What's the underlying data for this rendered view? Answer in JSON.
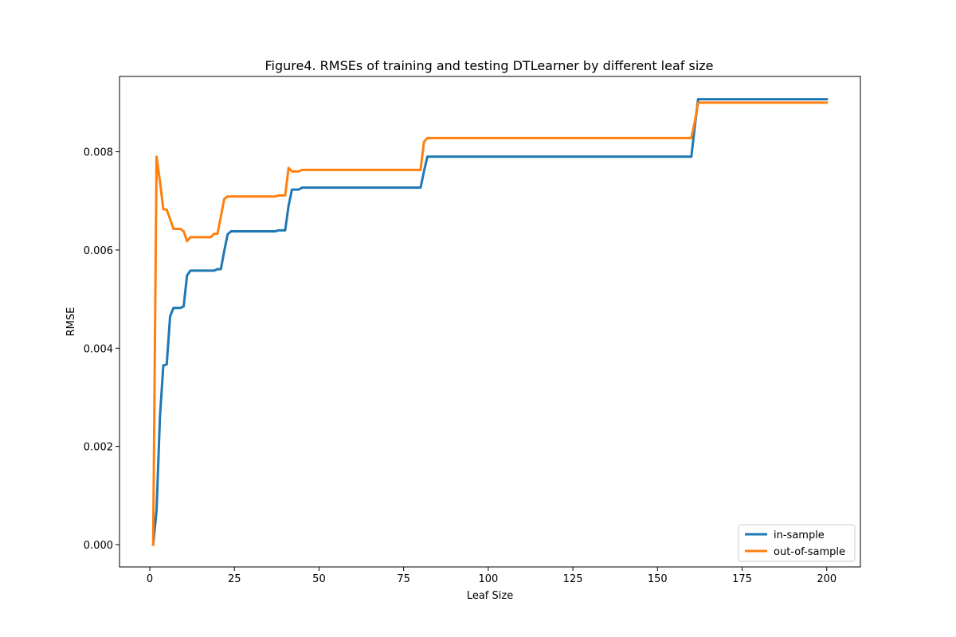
{
  "chart_data": {
    "type": "line",
    "title": "Figure4. RMSEs of training and testing DTLearner by different leaf size",
    "xlabel": "Leaf Size",
    "ylabel": "RMSE",
    "xlim": [
      -8.95,
      209.95
    ],
    "ylim": [
      -0.000454,
      0.009534
    ],
    "xticks": [
      0,
      25,
      50,
      75,
      100,
      125,
      150,
      175,
      200
    ],
    "xtick_labels": [
      "0",
      "25",
      "50",
      "75",
      "100",
      "125",
      "150",
      "175",
      "200"
    ],
    "yticks": [
      0.0,
      0.002,
      0.004,
      0.006,
      0.008
    ],
    "ytick_labels": [
      "0.000",
      "0.002",
      "0.004",
      "0.006",
      "0.008"
    ],
    "grid": false,
    "legend_position": "lower-right",
    "series": [
      {
        "name": "in-sample",
        "color": "#1f77b4",
        "points": [
          [
            1,
            0.0
          ],
          [
            2,
            0.0007
          ],
          [
            3,
            0.0026
          ],
          [
            4,
            0.00365
          ],
          [
            5,
            0.00367
          ],
          [
            6,
            0.00465
          ],
          [
            7,
            0.00482
          ],
          [
            9,
            0.00482
          ],
          [
            10,
            0.00485
          ],
          [
            11,
            0.00548
          ],
          [
            12,
            0.00558
          ],
          [
            19,
            0.00558
          ],
          [
            20,
            0.00561
          ],
          [
            21,
            0.00561
          ],
          [
            22,
            0.00598
          ],
          [
            23,
            0.00632
          ],
          [
            24,
            0.00638
          ],
          [
            37,
            0.00638
          ],
          [
            38,
            0.0064
          ],
          [
            40,
            0.0064
          ],
          [
            41,
            0.0069
          ],
          [
            42,
            0.00723
          ],
          [
            44,
            0.00723
          ],
          [
            45,
            0.00727
          ],
          [
            80,
            0.00727
          ],
          [
            81,
            0.0076
          ],
          [
            82,
            0.0079
          ],
          [
            160,
            0.0079
          ],
          [
            161,
            0.0085
          ],
          [
            162,
            0.00907
          ],
          [
            200,
            0.00907
          ]
        ]
      },
      {
        "name": "out-of-sample",
        "color": "#ff7f0e",
        "points": [
          [
            1,
            0.0
          ],
          [
            2,
            0.0079
          ],
          [
            3,
            0.0074
          ],
          [
            4,
            0.00683
          ],
          [
            5,
            0.00682
          ],
          [
            6,
            0.00663
          ],
          [
            7,
            0.00643
          ],
          [
            9,
            0.00643
          ],
          [
            10,
            0.00638
          ],
          [
            11,
            0.00618
          ],
          [
            12,
            0.00626
          ],
          [
            18,
            0.00626
          ],
          [
            19,
            0.00633
          ],
          [
            20,
            0.00633
          ],
          [
            21,
            0.00668
          ],
          [
            22,
            0.00704
          ],
          [
            23,
            0.00709
          ],
          [
            37,
            0.00709
          ],
          [
            38,
            0.00711
          ],
          [
            40,
            0.00711
          ],
          [
            41,
            0.00767
          ],
          [
            42,
            0.0076
          ],
          [
            44,
            0.0076
          ],
          [
            45,
            0.00763
          ],
          [
            80,
            0.00763
          ],
          [
            81,
            0.0082
          ],
          [
            82,
            0.00828
          ],
          [
            160,
            0.00828
          ],
          [
            161,
            0.0086
          ],
          [
            162,
            0.009
          ],
          [
            200,
            0.009
          ]
        ]
      }
    ]
  }
}
